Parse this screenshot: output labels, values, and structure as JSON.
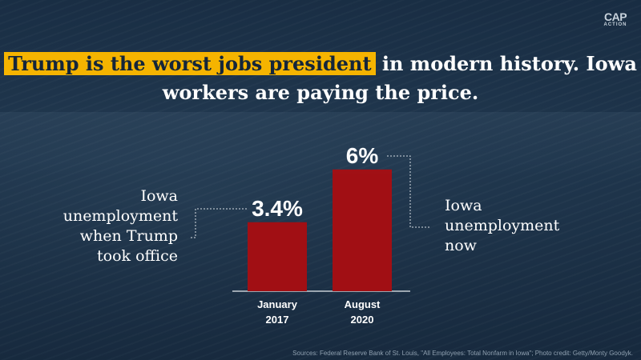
{
  "logo": {
    "main": "CAP",
    "sub": "ACTION"
  },
  "headline": {
    "highlight": "Trump is the worst jobs president",
    "rest": " in modern history. Iowa workers are paying the price."
  },
  "annotations": {
    "left": "Iowa unemployment when Trump took office",
    "right": "Iowa unemployment now"
  },
  "source": "Sources: Federal Reserve Bank of St. Louis, \"All Employees: Total Nonfarm in Iowa\"; Photo credit: Getty/Monty Goodyk.",
  "colors": {
    "bar": "#a10f14",
    "highlight": "#f5b400",
    "background": "#1f3a55"
  },
  "chart_data": {
    "type": "bar",
    "categories": [
      "January 2017",
      "August 2020"
    ],
    "category_lines": [
      [
        "January",
        "2017"
      ],
      [
        "August",
        "2020"
      ]
    ],
    "values": [
      3.4,
      6
    ],
    "value_labels": [
      "3.4%",
      "6%"
    ],
    "ylim": [
      0,
      6.9
    ],
    "grid": false,
    "legend": "none"
  }
}
